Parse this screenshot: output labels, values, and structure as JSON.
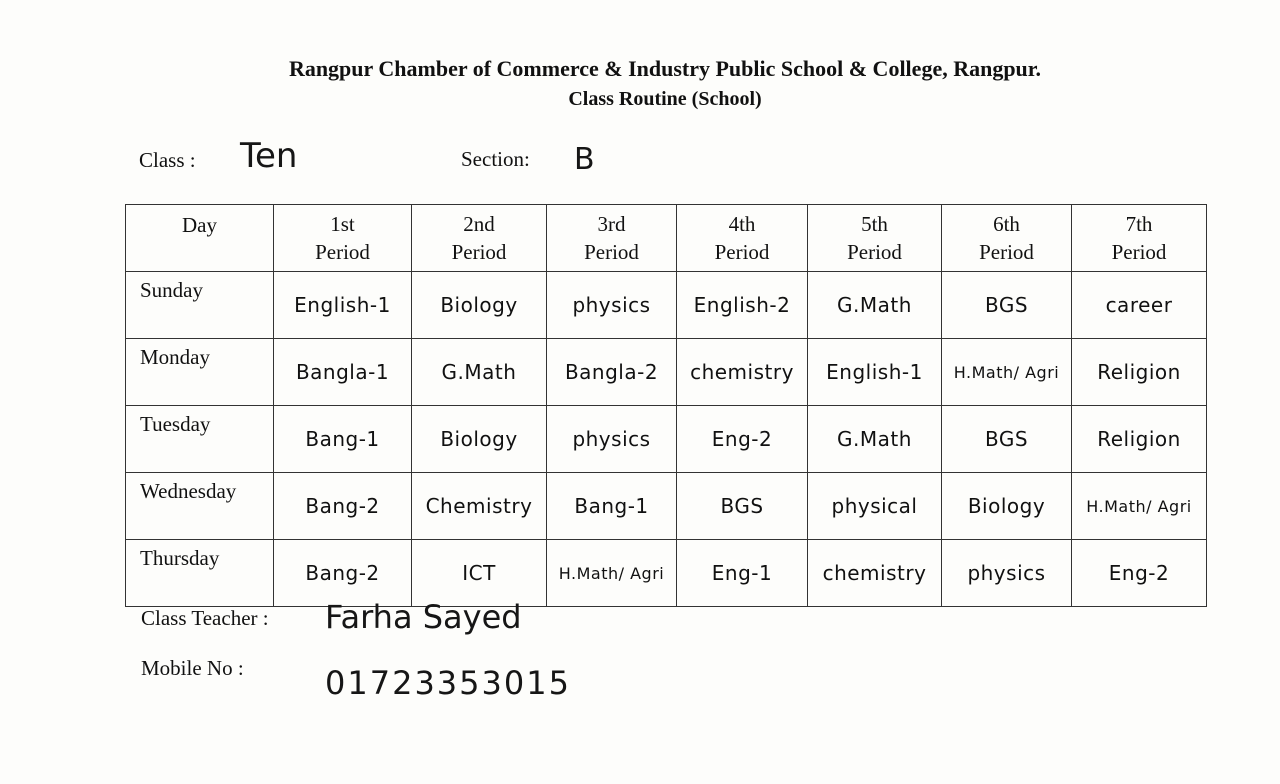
{
  "header": {
    "title": "Rangpur Chamber of Commerce & Industry Public School & College, Rangpur.",
    "subtitle": "Class Routine (School)"
  },
  "class_info": {
    "class_label": "Class :",
    "class_value": "Ten",
    "section_label": "Section:",
    "section_value": "B"
  },
  "routine": {
    "columns": [
      "Day",
      "1st\nPeriod",
      "2nd\nPeriod",
      "3rd\nPeriod",
      "4th\nPeriod",
      "5th\nPeriod",
      "6th\nPeriod",
      "7th\nPeriod"
    ],
    "rows": [
      {
        "day": "Sunday",
        "periods": [
          "English-1",
          "Biology",
          "physics",
          "English-2",
          "G.Math",
          "BGS",
          "career"
        ]
      },
      {
        "day": "Monday",
        "periods": [
          "Bangla-1",
          "G.Math",
          "Bangla-2",
          "chemistry",
          "English-1",
          "H.Math/ Agri",
          "Religion"
        ]
      },
      {
        "day": "Tuesday",
        "periods": [
          "Bang-1",
          "Biology",
          "physics",
          "Eng-2",
          "G.Math",
          "BGS",
          "Religion"
        ]
      },
      {
        "day": "Wednesday",
        "periods": [
          "Bang-2",
          "Chemistry",
          "Bang-1",
          "BGS",
          "physical",
          "Biology",
          "H.Math/ Agri"
        ]
      },
      {
        "day": "Thursday",
        "periods": [
          "Bang-2",
          "ICT",
          "H.Math/ Agri",
          "Eng-1",
          "chemistry",
          "physics",
          "Eng-2"
        ]
      }
    ]
  },
  "footer": {
    "teacher_label": "Class Teacher :",
    "teacher_value": "Farha Sayed",
    "mobile_label": "Mobile No :",
    "mobile_value": "01723353015"
  }
}
